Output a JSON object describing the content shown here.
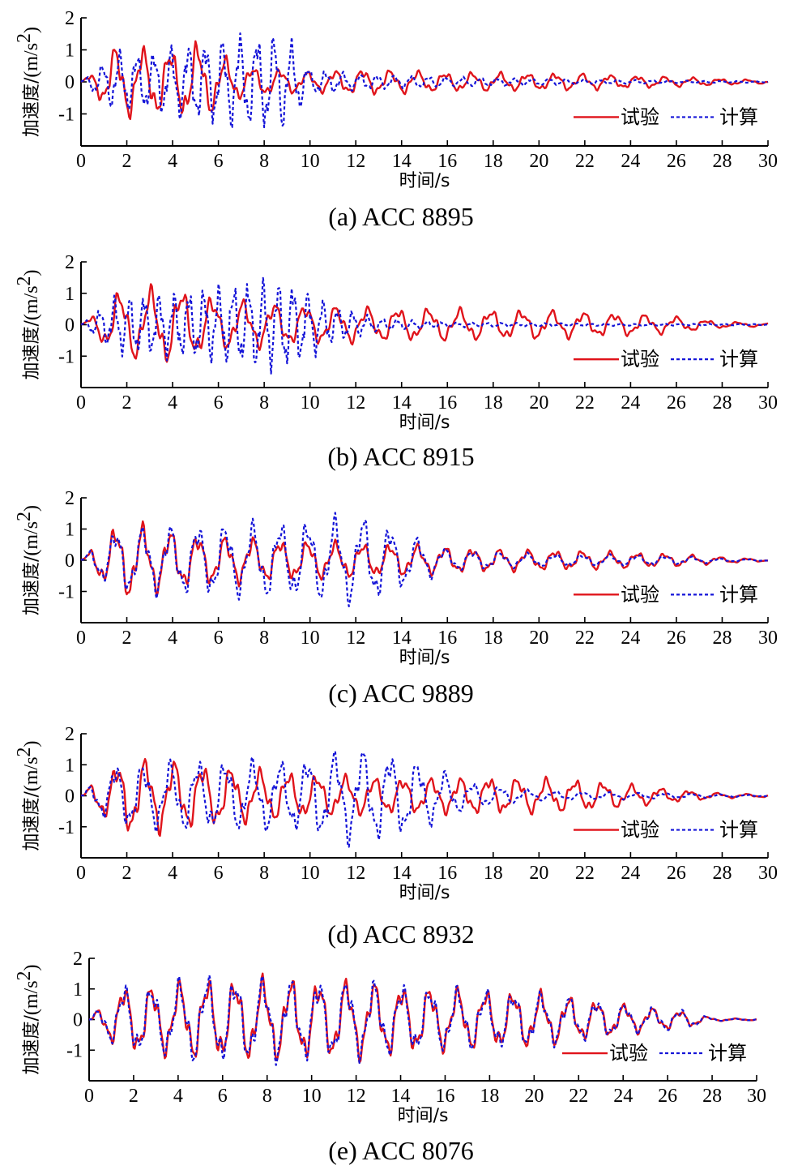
{
  "colors": {
    "experiment": "#e0141b",
    "calculation": "#1414d8",
    "axis": "#000000"
  },
  "chart_data": [
    {
      "type": "line",
      "caption": "(a) ACC 8895",
      "xlabel": "时间/s",
      "ylabel_cjk": "加速度/",
      "ylabel_unit": "(m/s",
      "ylabel_sup": "2",
      "ylabel_close": ")",
      "xlim": [
        0,
        30
      ],
      "ylim": [
        -2,
        2
      ],
      "xticks": [
        0,
        2,
        4,
        6,
        8,
        10,
        12,
        14,
        16,
        18,
        20,
        22,
        24,
        26,
        28,
        30
      ],
      "yticks": [
        -1,
        0,
        1,
        2
      ],
      "legend": {
        "items": [
          "试验",
          "计算"
        ],
        "placement": "bottom-right"
      },
      "series": [
        {
          "name": "试验",
          "style": "solid",
          "envelope": [
            [
              0,
              0.02
            ],
            [
              0.5,
              0.3
            ],
            [
              1.5,
              1.1
            ],
            [
              3,
              1.0
            ],
            [
              4.5,
              1.05
            ],
            [
              5,
              1.2
            ],
            [
              7,
              0.5
            ],
            [
              10,
              0.3
            ],
            [
              12,
              0.4
            ],
            [
              16,
              0.3
            ],
            [
              22,
              0.25
            ],
            [
              26,
              0.15
            ],
            [
              28,
              0.1
            ],
            [
              30,
              0.05
            ]
          ],
          "period": 1.2
        },
        {
          "name": "计算",
          "style": "dotted",
          "envelope": [
            [
              0,
              0.02
            ],
            [
              0.5,
              0.3
            ],
            [
              1.5,
              0.9
            ],
            [
              3,
              0.9
            ],
            [
              5,
              1.2
            ],
            [
              8,
              1.5
            ],
            [
              9,
              1.4
            ],
            [
              10,
              0.4
            ],
            [
              12,
              0.25
            ],
            [
              16,
              0.15
            ],
            [
              22,
              0.08
            ],
            [
              26,
              0.04
            ],
            [
              30,
              0.02
            ]
          ],
          "period": 0.75
        }
      ]
    },
    {
      "type": "line",
      "caption": "(b) ACC 8915",
      "xlabel": "时间/s",
      "ylabel_cjk": "加速度/",
      "ylabel_unit": "(m/s",
      "ylabel_sup": "2",
      "ylabel_close": ")",
      "xlim": [
        0,
        30
      ],
      "ylim": [
        -2,
        2
      ],
      "xticks": [
        0,
        2,
        4,
        6,
        8,
        10,
        12,
        14,
        16,
        18,
        20,
        22,
        24,
        26,
        28,
        30
      ],
      "yticks": [
        -1,
        0,
        1,
        2
      ],
      "legend": {
        "items": [
          "试验",
          "计算"
        ],
        "placement": "bottom-right"
      },
      "series": [
        {
          "name": "试验",
          "style": "solid",
          "envelope": [
            [
              0,
              0.02
            ],
            [
              0.5,
              0.3
            ],
            [
              1.5,
              1.0
            ],
            [
              4,
              1.2
            ],
            [
              6,
              0.8
            ],
            [
              10,
              0.6
            ],
            [
              12,
              0.55
            ],
            [
              16,
              0.5
            ],
            [
              20,
              0.45
            ],
            [
              24,
              0.35
            ],
            [
              26,
              0.25
            ],
            [
              28,
              0.1
            ],
            [
              30,
              0.05
            ]
          ],
          "period": 1.35
        },
        {
          "name": "计算",
          "style": "dotted",
          "envelope": [
            [
              0,
              0.02
            ],
            [
              0.5,
              0.3
            ],
            [
              1.5,
              0.9
            ],
            [
              4,
              1.0
            ],
            [
              6,
              1.2
            ],
            [
              8,
              1.4
            ],
            [
              9,
              1.4
            ],
            [
              11,
              0.6
            ],
            [
              13,
              0.2
            ],
            [
              16,
              0.08
            ],
            [
              22,
              0.04
            ],
            [
              30,
              0.02
            ]
          ],
          "period": 0.65
        }
      ]
    },
    {
      "type": "line",
      "caption": "(c) ACC 9889",
      "xlabel": "时间/s",
      "ylabel_cjk": "加速度/",
      "ylabel_unit": "(m/s",
      "ylabel_sup": "2",
      "ylabel_close": ")",
      "xlim": [
        0,
        30
      ],
      "ylim": [
        -2,
        2
      ],
      "xticks": [
        0,
        2,
        4,
        6,
        8,
        10,
        12,
        14,
        16,
        18,
        20,
        22,
        24,
        26,
        28,
        30
      ],
      "yticks": [
        -1,
        0,
        1,
        2
      ],
      "legend": {
        "items": [
          "试验",
          "计算"
        ],
        "placement": "bottom-right"
      },
      "series": [
        {
          "name": "试验",
          "style": "solid",
          "envelope": [
            [
              0,
              0.02
            ],
            [
              0.5,
              0.4
            ],
            [
              1.5,
              1.1
            ],
            [
              2,
              1.2
            ],
            [
              5,
              0.8
            ],
            [
              10,
              0.6
            ],
            [
              14,
              0.5
            ],
            [
              18,
              0.35
            ],
            [
              22,
              0.3
            ],
            [
              26,
              0.2
            ],
            [
              28,
              0.1
            ],
            [
              30,
              0.03
            ]
          ],
          "period": 1.2
        },
        {
          "name": "计算",
          "style": "dotted",
          "envelope": [
            [
              0,
              0.02
            ],
            [
              0.5,
              0.4
            ],
            [
              1.5,
              1.0
            ],
            [
              5,
              1.1
            ],
            [
              9,
              1.2
            ],
            [
              12.5,
              1.4
            ],
            [
              14,
              0.9
            ],
            [
              16,
              0.35
            ],
            [
              20,
              0.2
            ],
            [
              26,
              0.15
            ],
            [
              28,
              0.05
            ],
            [
              30,
              0.02
            ]
          ],
          "period": 1.2
        }
      ]
    },
    {
      "type": "line",
      "caption": "(d) ACC 8932",
      "xlabel": "时间/s",
      "ylabel_cjk": "加速度/",
      "ylabel_unit": "(m/s",
      "ylabel_sup": "2",
      "ylabel_close": ")",
      "xlim": [
        0,
        30
      ],
      "ylim": [
        -2,
        2
      ],
      "xticks": [
        0,
        2,
        4,
        6,
        8,
        10,
        12,
        14,
        16,
        18,
        20,
        22,
        24,
        26,
        28,
        30
      ],
      "yticks": [
        -1,
        0,
        1,
        2
      ],
      "legend": {
        "items": [
          "试验",
          "计算"
        ],
        "placement": "bottom-right"
      },
      "series": [
        {
          "name": "试验",
          "style": "solid",
          "envelope": [
            [
              0,
              0.02
            ],
            [
              0.5,
              0.4
            ],
            [
              1.5,
              1.0
            ],
            [
              2,
              1.2
            ],
            [
              4,
              1.1
            ],
            [
              8,
              0.8
            ],
            [
              12,
              0.6
            ],
            [
              16,
              0.55
            ],
            [
              18,
              0.6
            ],
            [
              22,
              0.5
            ],
            [
              24,
              0.35
            ],
            [
              26,
              0.2
            ],
            [
              28,
              0.08
            ],
            [
              30,
              0.04
            ]
          ],
          "period": 1.25
        },
        {
          "name": "计算",
          "style": "dotted",
          "envelope": [
            [
              0,
              0.02
            ],
            [
              0.5,
              0.4
            ],
            [
              1.5,
              1.0
            ],
            [
              5,
              1.1
            ],
            [
              9,
              1.1
            ],
            [
              12,
              1.5
            ],
            [
              14,
              1.3
            ],
            [
              15,
              1.0
            ],
            [
              17,
              0.4
            ],
            [
              20,
              0.15
            ],
            [
              26,
              0.08
            ],
            [
              30,
              0.02
            ]
          ],
          "period": 1.2
        }
      ]
    },
    {
      "type": "line",
      "caption": "(e) ACC 8076",
      "xlabel": "时间/s",
      "ylabel_cjk": "加速度/",
      "ylabel_unit": "(m/s",
      "ylabel_sup": "2",
      "ylabel_close": ")",
      "xlim": [
        0,
        30
      ],
      "ylim": [
        -2,
        2
      ],
      "xticks": [
        0,
        2,
        4,
        6,
        8,
        10,
        12,
        14,
        16,
        18,
        20,
        22,
        24,
        26,
        28,
        30
      ],
      "yticks": [
        -1,
        0,
        1,
        2
      ],
      "legend": {
        "items": [
          "试验",
          "计算"
        ],
        "placement": "bottom-right"
      },
      "series": [
        {
          "name": "试验",
          "style": "solid",
          "envelope": [
            [
              0,
              0.02
            ],
            [
              0.5,
              0.4
            ],
            [
              1.5,
              1.1
            ],
            [
              3,
              1.1
            ],
            [
              5,
              1.3
            ],
            [
              9,
              1.3
            ],
            [
              12,
              1.25
            ],
            [
              16,
              1.0
            ],
            [
              20,
              0.9
            ],
            [
              23,
              0.6
            ],
            [
              25,
              0.4
            ],
            [
              27,
              0.25
            ],
            [
              28,
              0.05
            ],
            [
              30,
              0.02
            ]
          ],
          "period": 1.25
        },
        {
          "name": "计算",
          "style": "dotted",
          "envelope": [
            [
              0,
              0.02
            ],
            [
              0.5,
              0.4
            ],
            [
              1.5,
              1.1
            ],
            [
              3,
              1.1
            ],
            [
              5,
              1.4
            ],
            [
              9,
              1.3
            ],
            [
              12,
              1.25
            ],
            [
              16,
              1.0
            ],
            [
              20,
              0.9
            ],
            [
              23,
              0.6
            ],
            [
              25,
              0.4
            ],
            [
              27,
              0.3
            ],
            [
              28,
              0.05
            ],
            [
              30,
              0.02
            ]
          ],
          "period": 1.25
        }
      ]
    }
  ]
}
